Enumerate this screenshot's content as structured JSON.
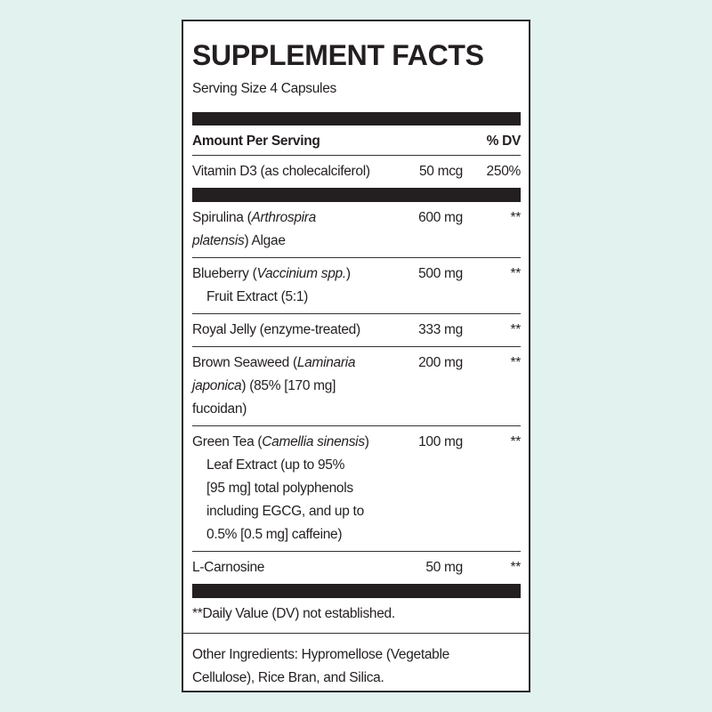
{
  "title": "SUPPLEMENT FACTS",
  "serving_size": "Serving Size 4 Capsules",
  "header": {
    "amount": "Amount Per Serving",
    "dv": "% DV"
  },
  "vitamins": [
    {
      "name": [
        [
          {
            "text": "Vitamin D3 (as cholecalciferol)"
          }
        ]
      ],
      "amount": "50 mcg",
      "dv": "250%"
    }
  ],
  "ingredients": [
    {
      "name": [
        [
          {
            "text": "Spirulina ("
          },
          {
            "text": "Arthrospira",
            "italic": true
          }
        ],
        [
          {
            "text": "platensis",
            "italic": true
          },
          {
            "text": ") Algae"
          }
        ]
      ],
      "amount": "600 mg",
      "dv": "**"
    },
    {
      "name": [
        [
          {
            "text": "Blueberry ("
          },
          {
            "text": "Vaccinium spp.",
            "italic": true
          },
          {
            "text": ")"
          }
        ],
        [
          {
            "text": "Fruit Extract (5:1)"
          }
        ]
      ],
      "hanging_indent": true,
      "amount": "500 mg",
      "dv": "**"
    },
    {
      "name": [
        [
          {
            "text": "Royal Jelly (enzyme-treated)"
          }
        ]
      ],
      "amount": "333 mg",
      "dv": "**"
    },
    {
      "name": [
        [
          {
            "text": "Brown Seaweed ("
          },
          {
            "text": "Laminaria",
            "italic": true
          }
        ],
        [
          {
            "text": "japonica",
            "italic": true
          },
          {
            "text": ") (85% [170 mg]"
          }
        ],
        [
          {
            "text": "fucoidan)"
          }
        ]
      ],
      "amount": "200 mg",
      "dv": "**"
    },
    {
      "name": [
        [
          {
            "text": "Green Tea ("
          },
          {
            "text": "Camellia sinensis",
            "italic": true
          },
          {
            "text": ")"
          }
        ],
        [
          {
            "text": "Leaf Extract (up to 95%"
          }
        ],
        [
          {
            "text": "[95 mg] total polyphenols"
          }
        ],
        [
          {
            "text": "including EGCG, and up to"
          }
        ],
        [
          {
            "text": "0.5% [0.5 mg] caffeine)"
          }
        ]
      ],
      "hanging_indent": true,
      "amount": "100 mg",
      "dv": "**"
    },
    {
      "name": [
        [
          {
            "text": "L-Carnosine"
          }
        ]
      ],
      "amount": "50 mg",
      "dv": "**"
    }
  ],
  "footnote": "**Daily Value (DV) not established.",
  "other_ingredients": "Other Ingredients: Hypromellose (Vegetable Cellulose), Rice Bran, and Silica."
}
